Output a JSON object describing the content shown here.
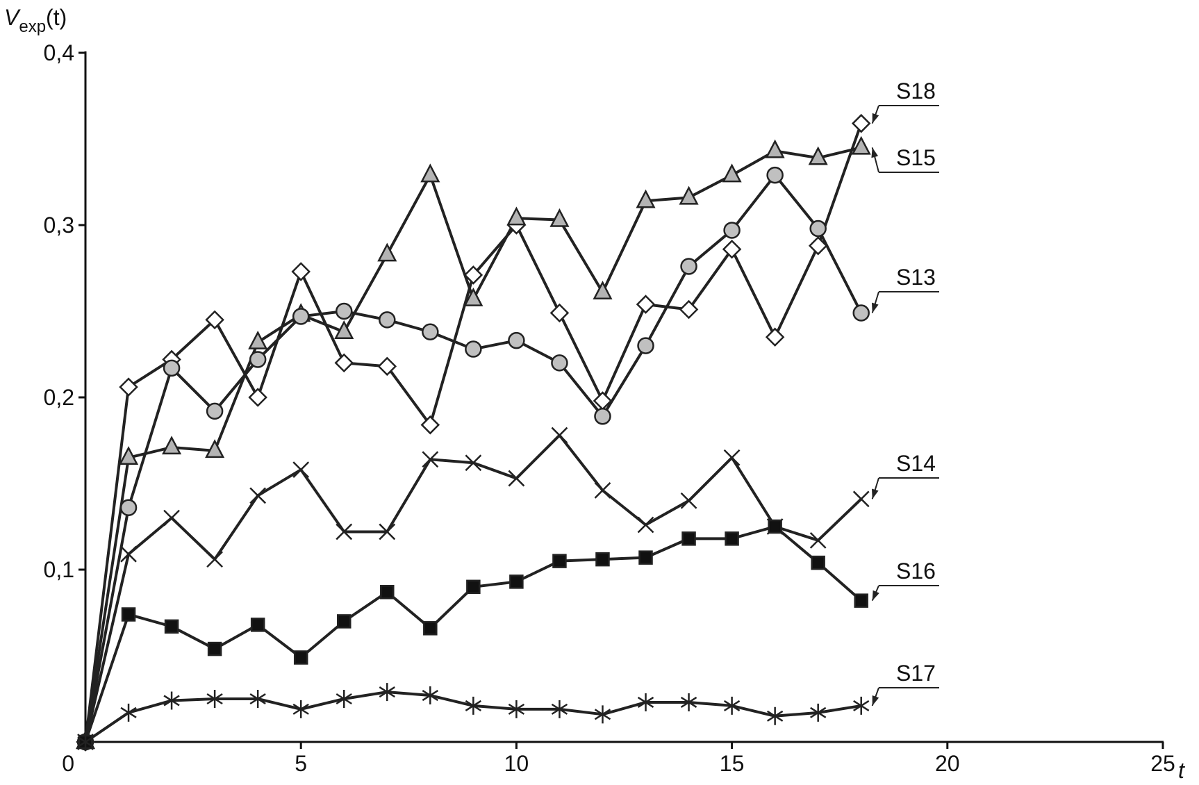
{
  "chart_data": {
    "type": "line",
    "ylabel": [
      "V",
      "exp",
      "(t)"
    ],
    "xlabel": "t",
    "x": [
      0,
      1,
      2,
      3,
      4,
      5,
      6,
      7,
      8,
      9,
      10,
      11,
      12,
      13,
      14,
      15,
      16,
      17,
      18
    ],
    "xlim": [
      0,
      25
    ],
    "xticks": [
      0,
      5,
      10,
      15,
      20,
      25
    ],
    "ylim": [
      0,
      0.4
    ],
    "yticks": [
      {
        "value": 0.1,
        "label": "0,1"
      },
      {
        "value": 0.2,
        "label": "0,2"
      },
      {
        "value": 0.3,
        "label": "0,3"
      },
      {
        "value": 0.4,
        "label": "0,4"
      }
    ],
    "series": [
      {
        "name": "S18",
        "marker": "diamond",
        "color": "#ffffff",
        "values": [
          0,
          0.206,
          0.222,
          0.245,
          0.2,
          0.273,
          0.22,
          0.218,
          0.184,
          0.271,
          0.3,
          0.249,
          0.198,
          0.254,
          0.251,
          0.286,
          0.235,
          0.288,
          0.359
        ]
      },
      {
        "name": "S15",
        "marker": "triangle",
        "color": "#b4b4b4",
        "values": [
          0,
          0.165,
          0.171,
          0.169,
          0.232,
          0.248,
          0.238,
          0.283,
          0.329,
          0.257,
          0.304,
          0.303,
          0.261,
          0.314,
          0.316,
          0.329,
          0.343,
          0.339,
          0.345
        ]
      },
      {
        "name": "S13",
        "marker": "circle",
        "color": "#c0c0c0",
        "values": [
          0,
          0.136,
          0.217,
          0.192,
          0.222,
          0.247,
          0.25,
          0.245,
          0.238,
          0.228,
          0.233,
          0.22,
          0.189,
          0.23,
          0.276,
          0.297,
          0.329,
          0.298,
          0.249
        ]
      },
      {
        "name": "S14",
        "marker": "x",
        "color": "#222222",
        "values": [
          0,
          0.109,
          0.13,
          0.106,
          0.143,
          0.158,
          0.122,
          0.122,
          0.164,
          0.162,
          0.153,
          0.178,
          0.146,
          0.126,
          0.14,
          0.165,
          0.125,
          0.117,
          0.141
        ]
      },
      {
        "name": "S16",
        "marker": "square",
        "color": "#111111",
        "values": [
          0,
          0.074,
          0.067,
          0.054,
          0.068,
          0.049,
          0.07,
          0.087,
          0.066,
          0.09,
          0.093,
          0.105,
          0.106,
          0.107,
          0.118,
          0.118,
          0.125,
          0.104,
          0.082
        ]
      },
      {
        "name": "S17",
        "marker": "asterisk",
        "color": "#222222",
        "values": [
          0,
          0.017,
          0.024,
          0.025,
          0.025,
          0.019,
          0.025,
          0.029,
          0.027,
          0.021,
          0.019,
          0.019,
          0.016,
          0.023,
          0.023,
          0.021,
          0.015,
          0.017,
          0.021
        ]
      }
    ]
  }
}
